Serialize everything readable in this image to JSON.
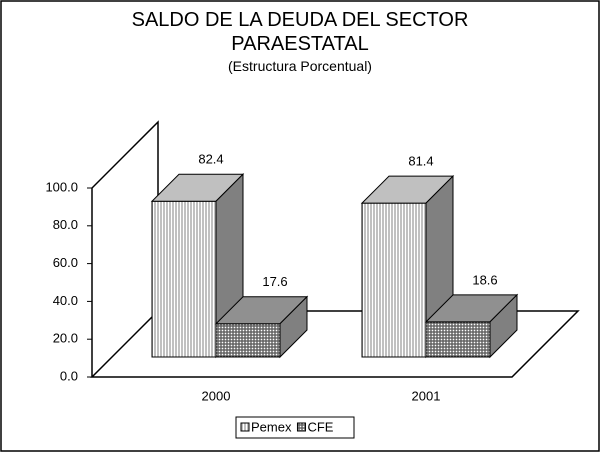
{
  "chart_data": {
    "type": "bar3d",
    "title": "SALDO DE LA DEUDA DEL SECTOR PARAESTATAL",
    "subtitle": "(Estructura Porcentual)",
    "categories": [
      "2000",
      "2001"
    ],
    "series": [
      {
        "name": "Pemex",
        "color": "#c0c0c0",
        "values": [
          82.4,
          81.4
        ]
      },
      {
        "name": "CFE",
        "color": "#909090",
        "values": [
          17.6,
          18.6
        ]
      }
    ],
    "ylim": [
      0,
      100
    ],
    "yticks": [
      {
        "value": 0,
        "label": "0.0"
      },
      {
        "value": 20,
        "label": "20.0"
      },
      {
        "value": 40,
        "label": "40.0"
      },
      {
        "value": 60,
        "label": "60.0"
      },
      {
        "value": 80,
        "label": "80.0"
      },
      {
        "value": 100,
        "label": "100.0"
      }
    ],
    "legend": "bottom"
  }
}
